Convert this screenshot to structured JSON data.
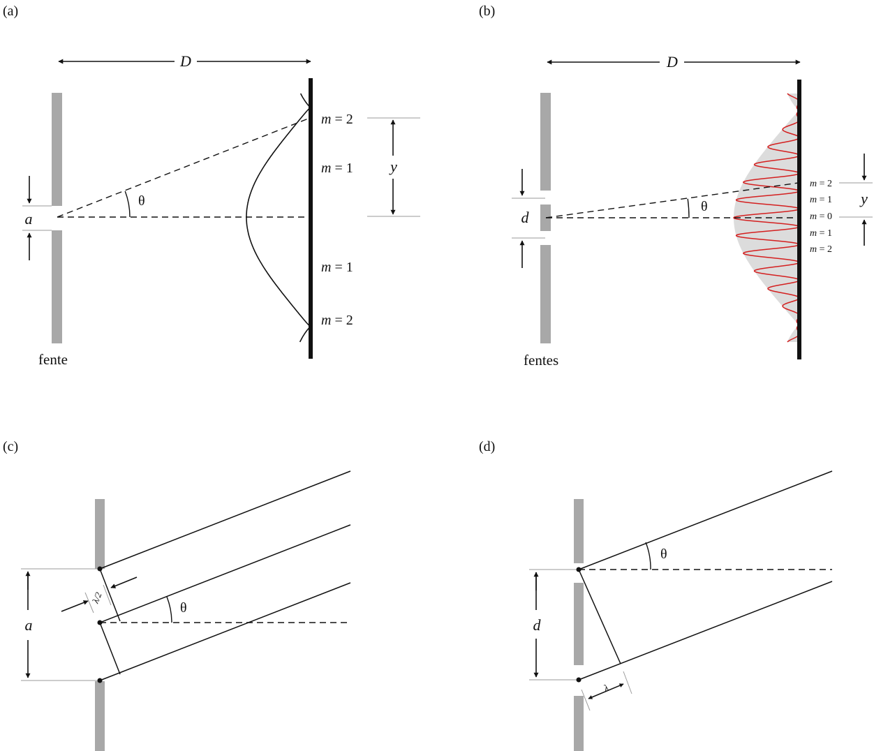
{
  "colors": {
    "ink": "#111111",
    "slit_gray": "#a8a8a8",
    "guide_gray": "#9a9a9a",
    "envelope_fill": "#dcdcdc",
    "fringes": "#d42020"
  },
  "panel_a": {
    "tag": "(a)",
    "D": "D",
    "slit_width": "a",
    "theta": "θ",
    "y": "y",
    "m_top_2": "m = 2",
    "m_top_1": "m = 1",
    "m_bot_1": "m = 1",
    "m_bot_2": "m = 2",
    "caption": "fente"
  },
  "panel_b": {
    "tag": "(b)",
    "D": "D",
    "slit_sep": "d",
    "theta": "θ",
    "y": "y",
    "m2_top": "m = 2",
    "m1_top": "m = 1",
    "m0": "m = 0",
    "m1_bot": "m = 1",
    "m2_bot": "m = 2",
    "caption": "fentes"
  },
  "panel_c": {
    "tag": "(c)",
    "slit_width": "a",
    "half_lambda": "λ/2",
    "theta": "θ"
  },
  "panel_d": {
    "tag": "(d)",
    "slit_sep": "d",
    "lambda": "λ",
    "theta": "θ"
  }
}
